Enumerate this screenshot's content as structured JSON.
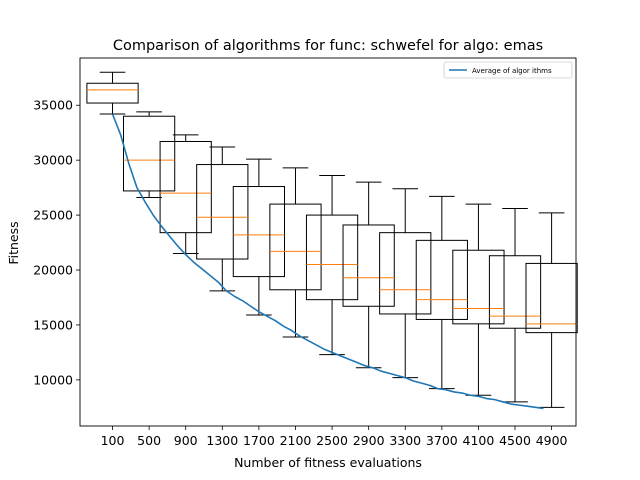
{
  "chart_data": {
    "type": "box+line",
    "title": "Comparison of algorithms for func: schwefel for algo: emas",
    "xlabel": "Number of fitness evaluations",
    "ylabel": "Fitness",
    "ylim": [
      5800,
      39300
    ],
    "yticks": [
      10000,
      15000,
      20000,
      25000,
      30000,
      35000
    ],
    "grid": false,
    "legend": {
      "placement": "top-right",
      "entries": [
        "Average of algor ithms"
      ]
    },
    "colors": {
      "line": "#1f77b4",
      "median": "#ff7f0e",
      "box": "#000000"
    },
    "categories": [
      "100",
      "500",
      "900",
      "1300",
      "1700",
      "2100",
      "2500",
      "2900",
      "3300",
      "3700",
      "4100",
      "4500",
      "4900"
    ],
    "boxes": [
      {
        "x": "100",
        "whisker_low": 34200,
        "q1": 35200,
        "median": 36400,
        "q3": 37000,
        "whisker_high": 38000
      },
      {
        "x": "500",
        "whisker_low": 26600,
        "q1": 27200,
        "median": 30000,
        "q3": 34000,
        "whisker_high": 34400
      },
      {
        "x": "900",
        "whisker_low": 21500,
        "q1": 23400,
        "median": 27000,
        "q3": 31700,
        "whisker_high": 32300
      },
      {
        "x": "1300",
        "whisker_low": 18100,
        "q1": 21000,
        "median": 24800,
        "q3": 29600,
        "whisker_high": 31200
      },
      {
        "x": "1700",
        "whisker_low": 15900,
        "q1": 19400,
        "median": 23200,
        "q3": 27600,
        "whisker_high": 30100
      },
      {
        "x": "2100",
        "whisker_low": 13900,
        "q1": 18200,
        "median": 21700,
        "q3": 26000,
        "whisker_high": 29300
      },
      {
        "x": "2500",
        "whisker_low": 12300,
        "q1": 17300,
        "median": 20500,
        "q3": 25000,
        "whisker_high": 28600
      },
      {
        "x": "2900",
        "whisker_low": 11100,
        "q1": 16700,
        "median": 19300,
        "q3": 24100,
        "whisker_high": 28000
      },
      {
        "x": "3300",
        "whisker_low": 10200,
        "q1": 16000,
        "median": 18200,
        "q3": 23400,
        "whisker_high": 27400
      },
      {
        "x": "3700",
        "whisker_low": 9200,
        "q1": 15500,
        "median": 17300,
        "q3": 22700,
        "whisker_high": 26700
      },
      {
        "x": "4100",
        "whisker_low": 8600,
        "q1": 15100,
        "median": 16500,
        "q3": 21800,
        "whisker_high": 26000
      },
      {
        "x": "4500",
        "whisker_low": 8000,
        "q1": 14700,
        "median": 15800,
        "q3": 21300,
        "whisker_high": 25600
      },
      {
        "x": "4900",
        "whisker_low": 7500,
        "q1": 14300,
        "median": 15100,
        "q3": 20600,
        "whisker_high": 25200
      }
    ],
    "series": [
      {
        "name": "Average of algor ithms",
        "points": [
          [
            100,
            34200
          ],
          [
            300,
            32300
          ],
          [
            500,
            29700
          ],
          [
            700,
            27500
          ],
          [
            900,
            26200
          ],
          [
            1100,
            25000
          ],
          [
            1300,
            24000
          ],
          [
            1500,
            23100
          ],
          [
            1700,
            22200
          ],
          [
            1900,
            21400
          ],
          [
            2100,
            20700
          ],
          [
            2300,
            20100
          ],
          [
            2500,
            19500
          ],
          [
            2700,
            18900
          ],
          [
            2900,
            18100
          ],
          [
            3100,
            17600
          ],
          [
            3300,
            17200
          ],
          [
            3500,
            16700
          ],
          [
            3700,
            16200
          ],
          [
            3900,
            15800
          ],
          [
            4100,
            15400
          ],
          [
            4300,
            14900
          ],
          [
            4500,
            14500
          ],
          [
            4700,
            14000
          ],
          [
            4900,
            13600
          ],
          [
            5100,
            13200
          ],
          [
            5300,
            12800
          ],
          [
            5500,
            12500
          ],
          [
            5700,
            12200
          ],
          [
            5900,
            11900
          ],
          [
            6100,
            11600
          ],
          [
            6300,
            11300
          ],
          [
            6500,
            11100
          ],
          [
            6700,
            10800
          ],
          [
            6900,
            10600
          ],
          [
            7100,
            10400
          ],
          [
            7300,
            10200
          ],
          [
            7500,
            9900
          ],
          [
            7700,
            9700
          ],
          [
            7900,
            9500
          ],
          [
            8100,
            9200
          ],
          [
            8300,
            9100
          ],
          [
            8500,
            8900
          ],
          [
            8700,
            8800
          ],
          [
            8900,
            8600
          ],
          [
            9100,
            8500
          ],
          [
            9300,
            8300
          ],
          [
            9500,
            8200
          ],
          [
            9700,
            8000
          ],
          [
            9900,
            7800
          ],
          [
            10100,
            7700
          ],
          [
            10300,
            7600
          ],
          [
            10500,
            7500
          ],
          [
            10700,
            7400
          ]
        ]
      }
    ]
  }
}
